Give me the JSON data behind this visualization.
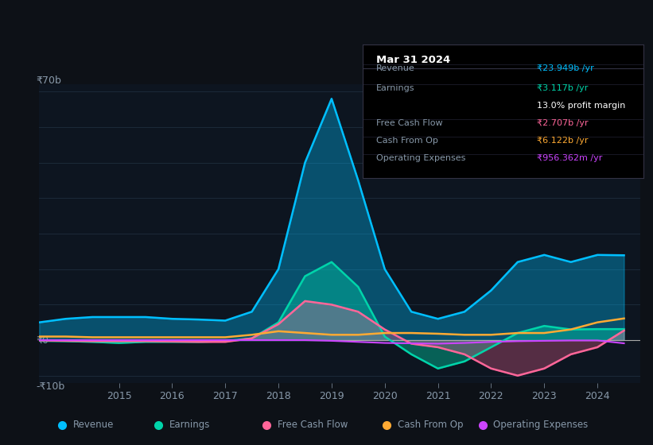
{
  "bg_color": "#0d1117",
  "plot_bg_color": "#0d1520",
  "grid_color": "#1e2d3d",
  "text_color": "#8899aa",
  "title_color": "#ffffff",
  "y70b_label": "₹70b",
  "y0_label": "₹0",
  "ym10b_label": "-₹10b",
  "ylim": [
    -12,
    72
  ],
  "xlim": [
    2013.5,
    2024.8
  ],
  "xticks": [
    2015,
    2016,
    2017,
    2018,
    2019,
    2020,
    2021,
    2022,
    2023,
    2024
  ],
  "years": [
    2013.5,
    2014,
    2014.5,
    2015,
    2015.5,
    2016,
    2016.5,
    2017,
    2017.5,
    2018,
    2018.5,
    2019,
    2019.5,
    2020,
    2020.5,
    2021,
    2021.5,
    2022,
    2022.5,
    2023,
    2023.5,
    2024,
    2024.5
  ],
  "revenue": [
    5,
    6,
    6.5,
    6.5,
    6.5,
    6,
    5.8,
    5.5,
    8,
    20,
    50,
    68,
    45,
    20,
    8,
    6,
    8,
    14,
    22,
    24,
    22,
    24,
    23.9
  ],
  "earnings": [
    -0.2,
    -0.3,
    -0.5,
    -0.8,
    -0.5,
    -0.5,
    -0.5,
    -0.3,
    0.5,
    5,
    18,
    22,
    15,
    1,
    -4,
    -8,
    -6,
    -2,
    2,
    4,
    3,
    3.1,
    3.1
  ],
  "free_cash_flow": [
    -0.1,
    -0.2,
    -0.3,
    -0.3,
    -0.3,
    -0.4,
    -0.5,
    -0.5,
    0.5,
    4.5,
    11,
    10,
    8,
    3,
    -1,
    -2,
    -4,
    -8,
    -10,
    -8,
    -4,
    -2,
    2.7
  ],
  "cash_from_op": [
    1.0,
    1.0,
    0.8,
    0.8,
    0.8,
    0.8,
    0.8,
    0.8,
    1.5,
    2.5,
    2,
    1.5,
    1.5,
    2,
    2,
    1.8,
    1.5,
    1.5,
    2,
    2,
    3,
    5,
    6.1
  ],
  "operating_expenses": [
    0,
    0,
    0,
    0,
    0,
    0,
    0,
    0,
    0,
    0,
    0,
    -0.2,
    -0.5,
    -0.8,
    -0.9,
    -1.0,
    -0.8,
    -0.5,
    -0.3,
    -0.2,
    -0.1,
    -0.1,
    -0.9
  ],
  "revenue_color": "#00bfff",
  "earnings_color": "#00d4aa",
  "free_cash_flow_color": "#ff6699",
  "cash_from_op_color": "#ffaa33",
  "operating_expenses_color": "#cc44ff",
  "revenue_fill_alpha": 0.35,
  "earnings_fill_alpha": 0.4,
  "free_cash_flow_fill_alpha": 0.3,
  "tooltip_bg": "#000000",
  "tooltip_border": "#333344",
  "tooltip_title": "Mar 31 2024",
  "tooltip_revenue_label": "Revenue",
  "tooltip_revenue": "₹23.949b /yr",
  "tooltip_earnings_label": "Earnings",
  "tooltip_earnings": "₹3.117b /yr",
  "tooltip_profit_margin": "13.0% profit margin",
  "tooltip_fcf_label": "Free Cash Flow",
  "tooltip_fcf": "₹2.707b /yr",
  "tooltip_cashop_label": "Cash From Op",
  "tooltip_cashop": "₹6.122b /yr",
  "tooltip_opex_label": "Operating Expenses",
  "tooltip_opex": "₹956.362m /yr",
  "legend_items": [
    "Revenue",
    "Earnings",
    "Free Cash Flow",
    "Cash From Op",
    "Operating Expenses"
  ],
  "legend_colors": [
    "#00bfff",
    "#00d4aa",
    "#ff6699",
    "#ffaa33",
    "#cc44ff"
  ],
  "divider_color": "#222233",
  "zero_line_color": "#aaaaaa",
  "profit_margin_color": "#ffffff"
}
